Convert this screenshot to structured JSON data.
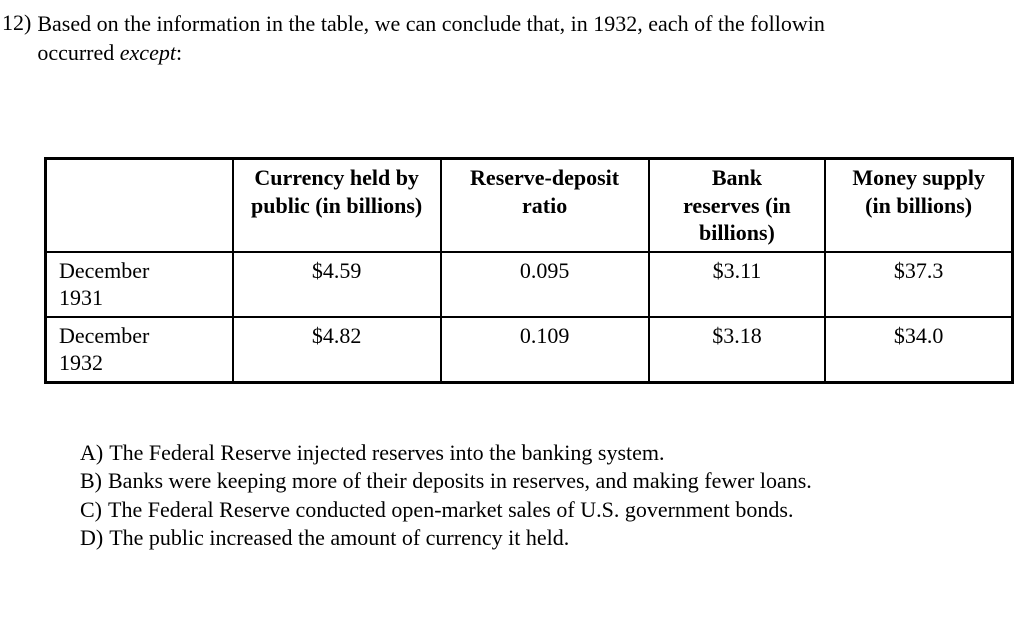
{
  "question": {
    "number": "12)",
    "text_line1": "Based on the information in the table, we can conclude that, in 1932, each of the followin",
    "text_line2_prefix": "occurred ",
    "text_line2_em": "except",
    "text_line2_suffix": ":"
  },
  "table": {
    "headers": {
      "col1": "",
      "col2_l1": "Currency held by",
      "col2_l2": "public (in billions)",
      "col3_l1": "Reserve-deposit",
      "col3_l2": "ratio",
      "col4_l1": "Bank",
      "col4_l2": "reserves (in",
      "col4_l3": "billions)",
      "col5_l1": "Money supply",
      "col5_l2": "(in billions)"
    },
    "rows": [
      {
        "period_l1": "December",
        "period_l2": "1931",
        "currency": "$4.59",
        "ratio": "0.095",
        "reserves": "$3.11",
        "money": "$37.3"
      },
      {
        "period_l1": "December",
        "period_l2": "1932",
        "currency": "$4.82",
        "ratio": "0.109",
        "reserves": "$3.18",
        "money": "$34.0"
      }
    ]
  },
  "answers": [
    {
      "letter": "A)",
      "text": "The Federal Reserve injected reserves into the banking system."
    },
    {
      "letter": "B)",
      "text": "Banks were keeping more of their deposits in reserves, and making fewer loans."
    },
    {
      "letter": "C)",
      "text": "The Federal Reserve conducted open-market sales of U.S. government bonds."
    },
    {
      "letter": "D)",
      "text": "The public increased the amount of currency it held."
    }
  ]
}
